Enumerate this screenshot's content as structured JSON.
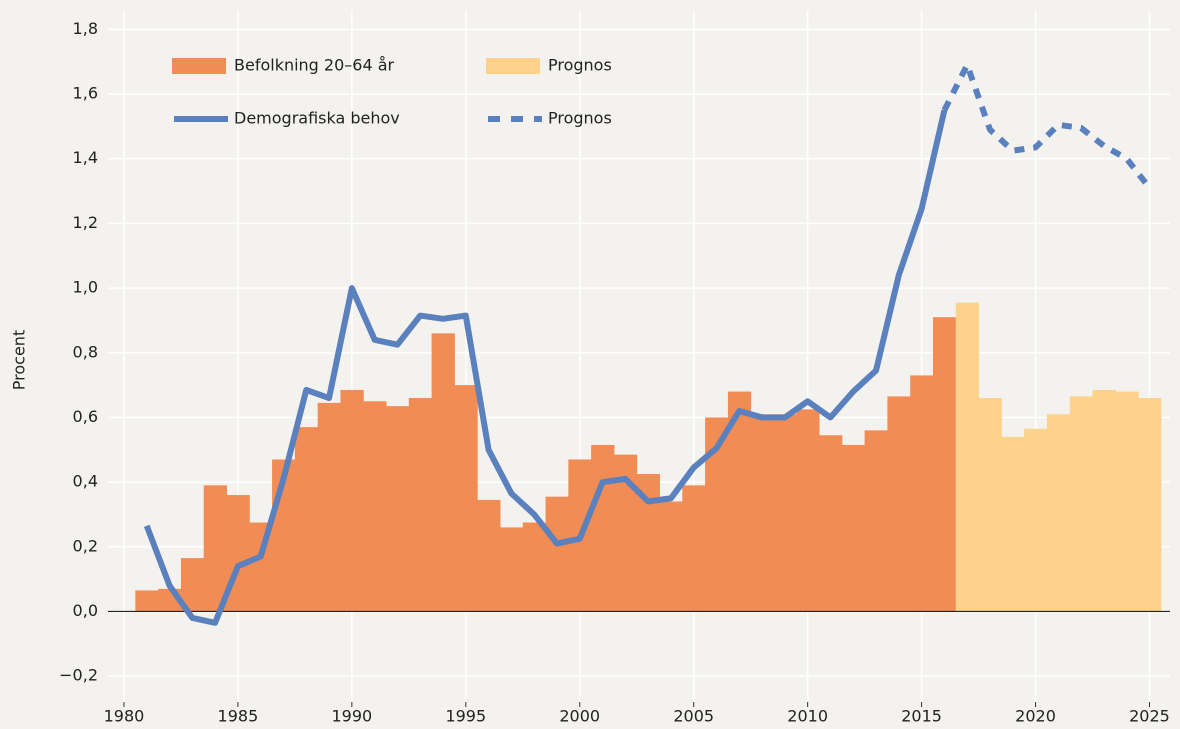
{
  "chart_data": {
    "type": "combo",
    "y_label": "Procent",
    "x": [
      1981,
      1982,
      1983,
      1984,
      1985,
      1986,
      1987,
      1988,
      1989,
      1990,
      1991,
      1992,
      1993,
      1994,
      1995,
      1996,
      1997,
      1998,
      1999,
      2000,
      2001,
      2002,
      2003,
      2004,
      2005,
      2006,
      2007,
      2008,
      2009,
      2010,
      2011,
      2012,
      2013,
      2014,
      2015,
      2016,
      2017,
      2018,
      2019,
      2020,
      2021,
      2022,
      2023,
      2024,
      2025
    ],
    "series": [
      {
        "name": "Befolkning 20–64 år",
        "kind": "bar",
        "color": "#f28c55",
        "values": [
          0.065,
          0.07,
          0.165,
          0.39,
          0.36,
          0.275,
          0.47,
          0.57,
          0.645,
          0.685,
          0.65,
          0.635,
          0.66,
          0.86,
          0.7,
          0.345,
          0.26,
          0.275,
          0.355,
          0.47,
          0.515,
          0.485,
          0.425,
          0.34,
          0.39,
          0.6,
          0.68,
          0.61,
          0.61,
          0.625,
          0.545,
          0.515,
          0.56,
          0.665,
          0.73,
          0.91,
          null,
          null,
          null,
          null,
          null,
          null,
          null,
          null,
          null
        ]
      },
      {
        "name": "Prognos",
        "kind": "bar",
        "color": "#fdd28a",
        "values": [
          null,
          null,
          null,
          null,
          null,
          null,
          null,
          null,
          null,
          null,
          null,
          null,
          null,
          null,
          null,
          null,
          null,
          null,
          null,
          null,
          null,
          null,
          null,
          null,
          null,
          null,
          null,
          null,
          null,
          null,
          null,
          null,
          null,
          null,
          null,
          null,
          0.955,
          0.66,
          0.54,
          0.565,
          0.61,
          0.665,
          0.685,
          0.68,
          0.66
        ]
      },
      {
        "name": "Demografiska behov",
        "kind": "line",
        "dash": false,
        "color": "#5a80be",
        "values": [
          0.265,
          0.08,
          -0.02,
          -0.035,
          0.14,
          0.17,
          0.41,
          0.685,
          0.66,
          1.0,
          0.84,
          0.825,
          0.915,
          0.905,
          0.915,
          0.5,
          0.365,
          0.3,
          0.21,
          0.225,
          0.4,
          0.41,
          0.34,
          0.35,
          0.445,
          0.505,
          0.62,
          0.6,
          0.6,
          0.65,
          0.6,
          0.68,
          0.745,
          1.04,
          1.245,
          1.55,
          null,
          null,
          null,
          null,
          null,
          null,
          null,
          null,
          null
        ]
      },
      {
        "name": "Prognos",
        "kind": "line",
        "dash": true,
        "color": "#5a80be",
        "values": [
          null,
          null,
          null,
          null,
          null,
          null,
          null,
          null,
          null,
          null,
          null,
          null,
          null,
          null,
          null,
          null,
          null,
          null,
          null,
          null,
          null,
          null,
          null,
          null,
          null,
          null,
          null,
          null,
          null,
          null,
          null,
          null,
          null,
          null,
          null,
          1.55,
          1.69,
          1.49,
          1.425,
          1.435,
          1.505,
          1.495,
          1.44,
          1.4,
          1.31
        ]
      }
    ],
    "xlim": [
      1979.3,
      2025.9
    ],
    "xticks": [
      1980,
      1985,
      1990,
      1995,
      2000,
      2005,
      2010,
      2015,
      2020,
      2025
    ],
    "ylim": [
      -0.28,
      1.86
    ],
    "yticks": [
      {
        "value": -0.2,
        "label": "−0,2"
      },
      {
        "value": 0,
        "label": "0,0"
      },
      {
        "value": 0.2,
        "label": "0,2"
      },
      {
        "value": 0.4,
        "label": "0,4"
      },
      {
        "value": 0.6,
        "label": "0,6"
      },
      {
        "value": 0.8,
        "label": "0,8"
      },
      {
        "value": 1.0,
        "label": "1,0"
      },
      {
        "value": 1.2,
        "label": "1,2"
      },
      {
        "value": 1.4,
        "label": "1,4"
      },
      {
        "value": 1.6,
        "label": "1,6"
      },
      {
        "value": 1.8,
        "label": "1,8"
      }
    ],
    "grid": true
  }
}
